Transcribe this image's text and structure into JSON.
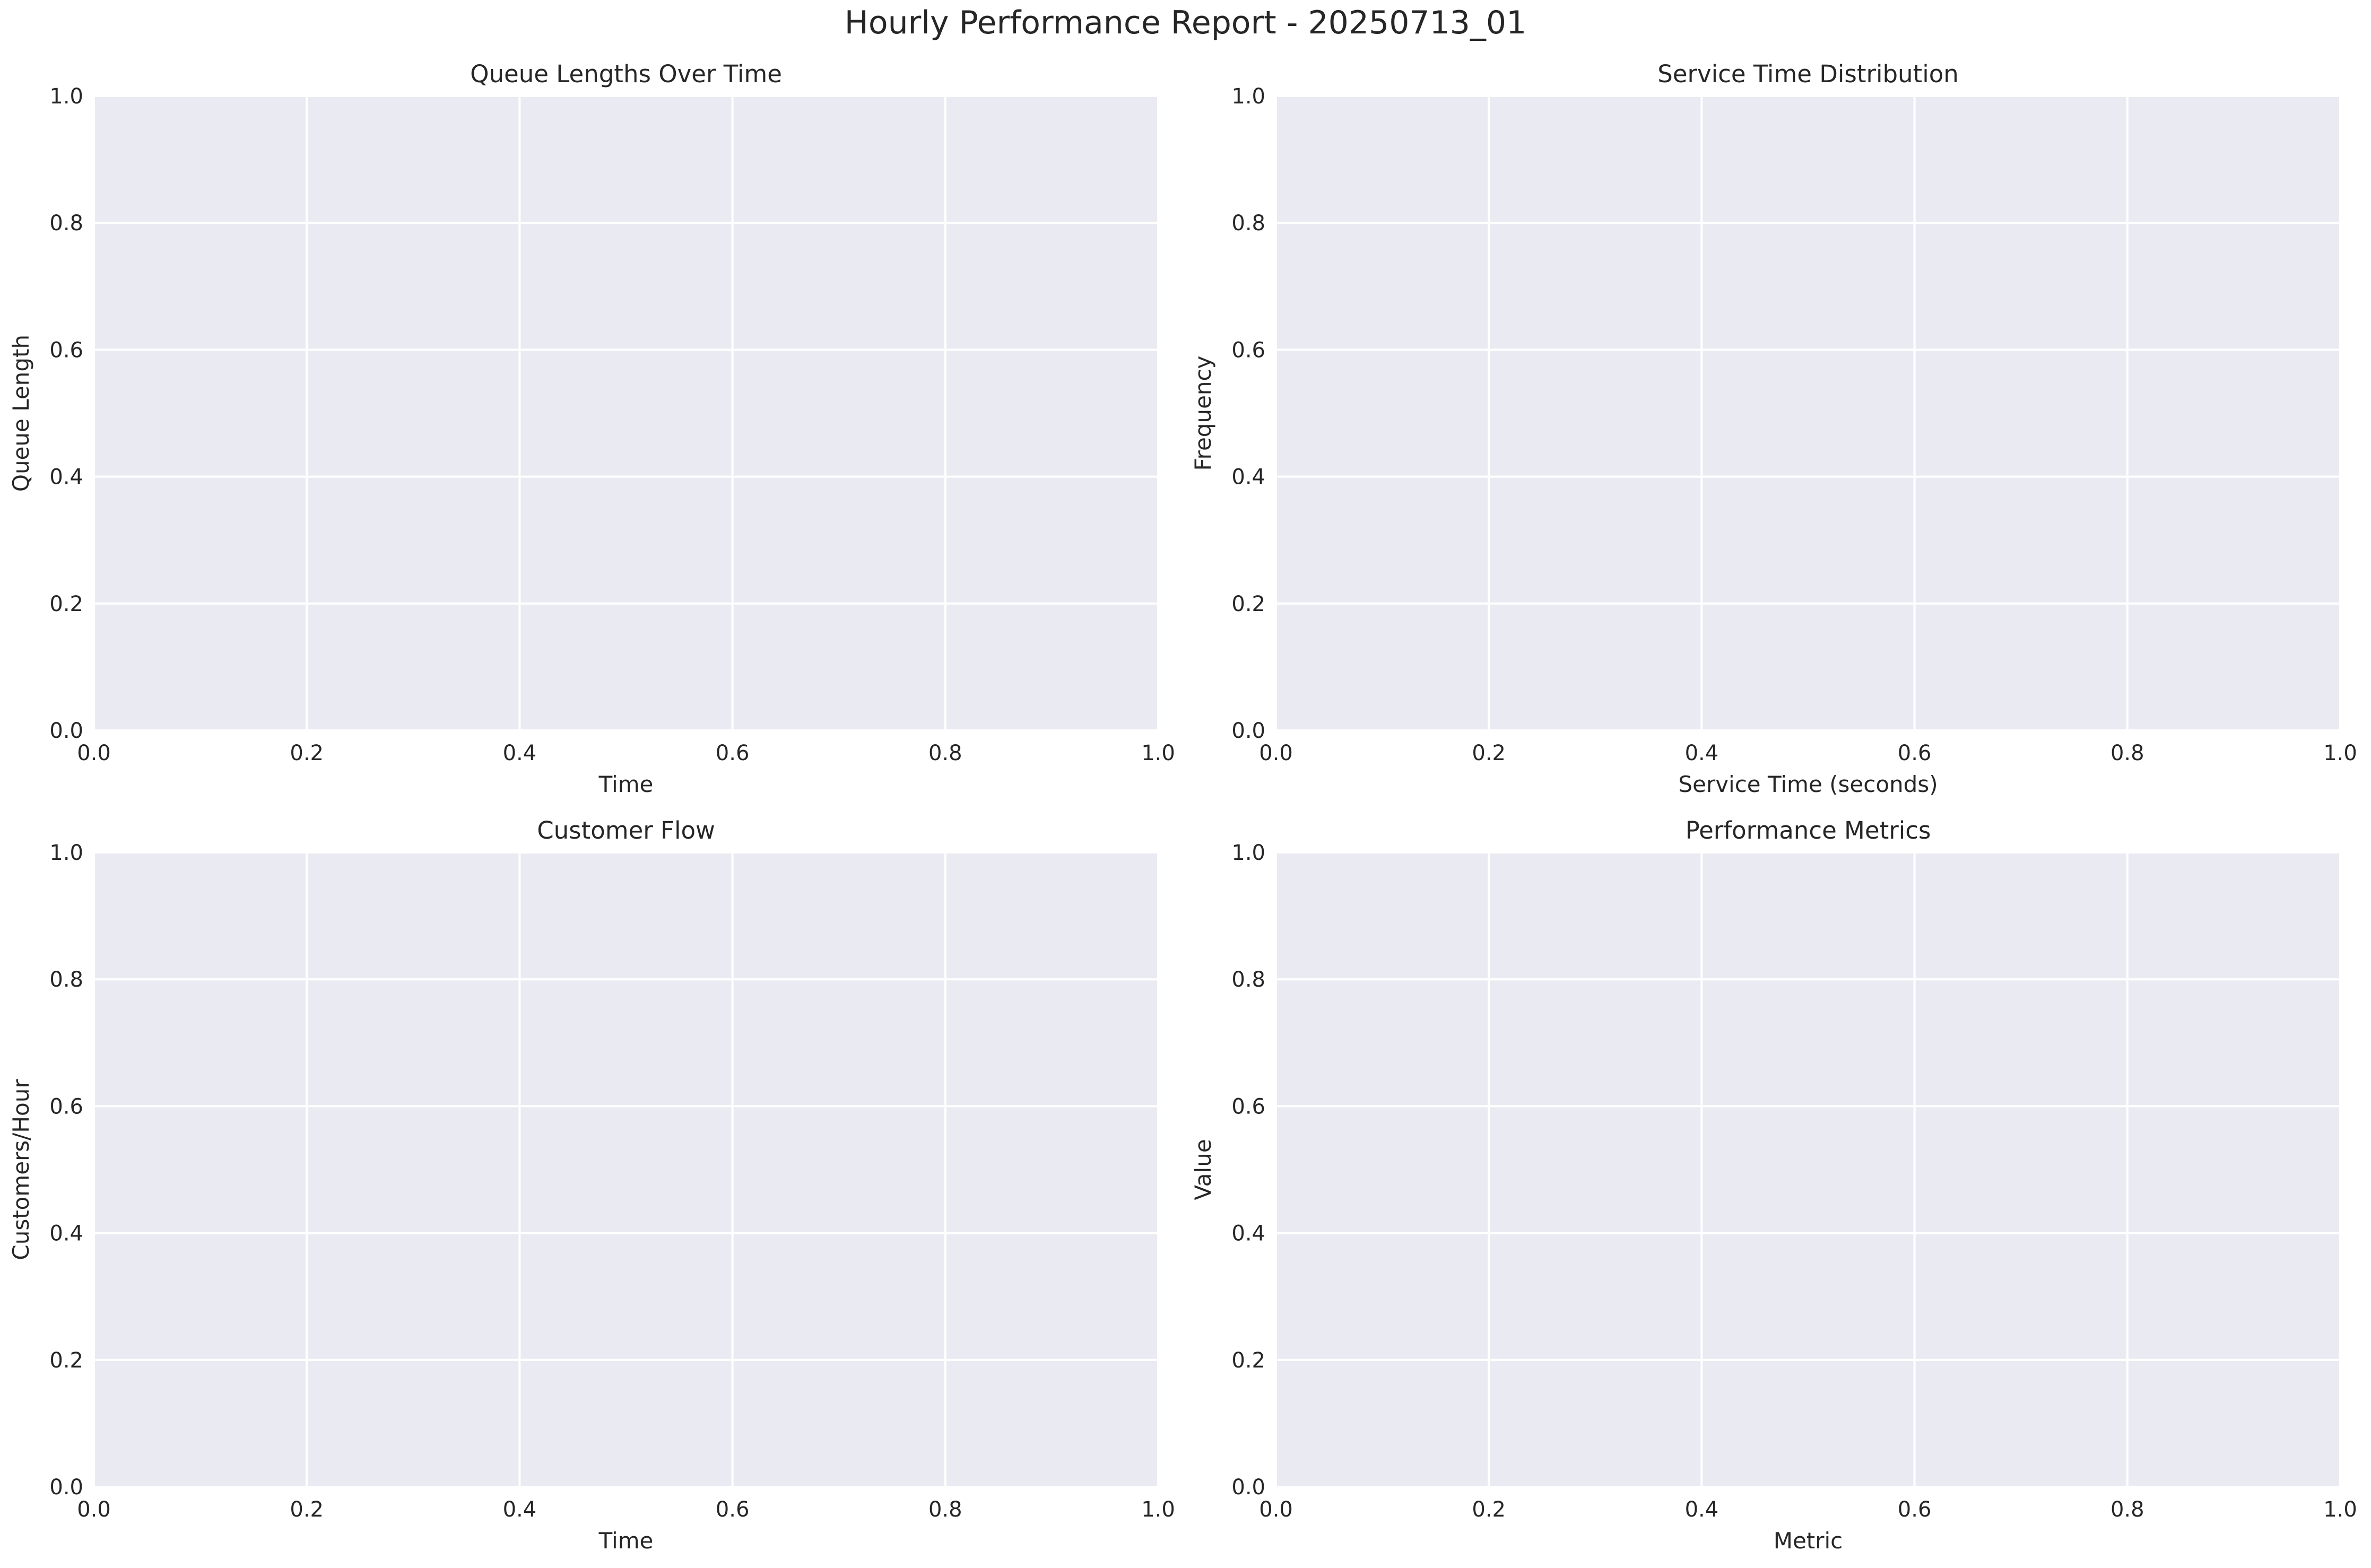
{
  "figure": {
    "title": "Hourly Performance Report - 20250713_01"
  },
  "colors": {
    "axes_background": "#eaeaf2",
    "grid": "#ffffff",
    "text": "#262626"
  },
  "chart_data": [
    {
      "type": "line",
      "title": "Queue Lengths Over Time",
      "xlabel": "Time",
      "ylabel": "Queue Length",
      "xlim": [
        0,
        1
      ],
      "ylim": [
        0,
        1
      ],
      "xticks": [
        "0.0",
        "0.2",
        "0.4",
        "0.6",
        "0.8",
        "1.0"
      ],
      "yticks": [
        "0.0",
        "0.2",
        "0.4",
        "0.6",
        "0.8",
        "1.0"
      ],
      "grid": true,
      "series": []
    },
    {
      "type": "bar",
      "title": "Service Time Distribution",
      "xlabel": "Service Time (seconds)",
      "ylabel": "Frequency",
      "xlim": [
        0,
        1
      ],
      "ylim": [
        0,
        1
      ],
      "xticks": [
        "0.0",
        "0.2",
        "0.4",
        "0.6",
        "0.8",
        "1.0"
      ],
      "yticks": [
        "0.0",
        "0.2",
        "0.4",
        "0.6",
        "0.8",
        "1.0"
      ],
      "grid": true,
      "series": []
    },
    {
      "type": "line",
      "title": "Customer Flow",
      "xlabel": "Time",
      "ylabel": "Customers/Hour",
      "xlim": [
        0,
        1
      ],
      "ylim": [
        0,
        1
      ],
      "xticks": [
        "0.0",
        "0.2",
        "0.4",
        "0.6",
        "0.8",
        "1.0"
      ],
      "yticks": [
        "0.0",
        "0.2",
        "0.4",
        "0.6",
        "0.8",
        "1.0"
      ],
      "grid": true,
      "series": []
    },
    {
      "type": "bar",
      "title": "Performance Metrics",
      "xlabel": "Metric",
      "ylabel": "Value",
      "xlim": [
        0,
        1
      ],
      "ylim": [
        0,
        1
      ],
      "xticks": [
        "0.0",
        "0.2",
        "0.4",
        "0.6",
        "0.8",
        "1.0"
      ],
      "yticks": [
        "0.0",
        "0.2",
        "0.4",
        "0.6",
        "0.8",
        "1.0"
      ],
      "grid": true,
      "series": []
    }
  ]
}
